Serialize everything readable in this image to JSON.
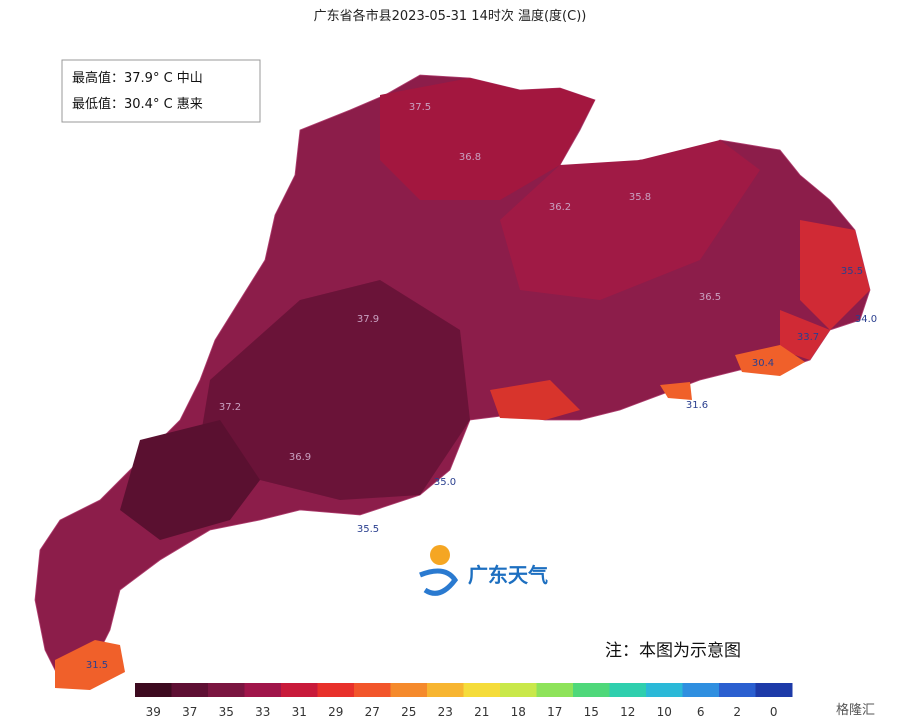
{
  "header": {
    "title": "广东省各市县2023-05-31 14时次 温度(度(C))"
  },
  "info": {
    "max": "最高值：37.9° C 中山",
    "min": "最低值：30.4° C 惠来"
  },
  "map": {
    "labels": [
      "35.5",
      "35.0",
      "31.6",
      "30.4",
      "31.5",
      "34.0",
      "33.7",
      "35.5",
      "37.9",
      "37.5",
      "36.8",
      "36.2",
      "35.8",
      "36.5",
      "37.2",
      "36.9"
    ]
  },
  "logo": "广东天气",
  "note": "注：本图为示意图",
  "colorbar": {
    "ticks": [
      39,
      37,
      35,
      33,
      31,
      29,
      27,
      25,
      23,
      21,
      18,
      17,
      15,
      12,
      10,
      6,
      2,
      0
    ],
    "colors": [
      "#3d0a1f",
      "#5e0f33",
      "#7a1540",
      "#a0154a",
      "#c81a3a",
      "#e8302a",
      "#f2552a",
      "#f58a2c",
      "#f7b531",
      "#f5dc3a",
      "#c9e84a",
      "#8ee35a",
      "#4fd87a",
      "#2fcfae",
      "#2bb9d8",
      "#2f8fe0",
      "#2a5fd0",
      "#1d3aa8"
    ]
  },
  "watermark": "格隆汇"
}
